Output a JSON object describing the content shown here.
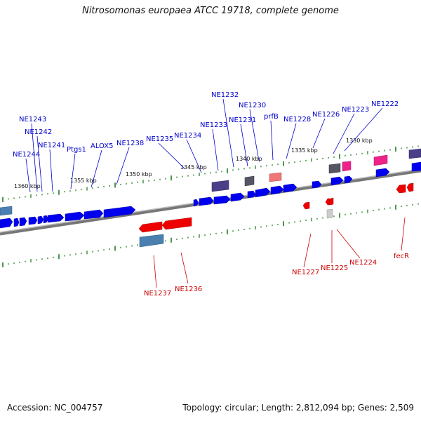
{
  "title": "Nitrosomonas europaea ATCC 19718, complete genome",
  "accession": "Accession: NC_004757",
  "metadata": "Topology: circular; Length: 2,812,094 bp; Genes: 2,509",
  "colors": {
    "plus_label": "#0000cc",
    "minus_label": "#cc0000",
    "cds_plus": "#0000ee",
    "cds_minus": "#ee0000",
    "tick": "#117711"
  },
  "ruler": [
    {
      "label": "1360 kbp"
    },
    {
      "label": "1355 kbp"
    },
    {
      "label": "1350 kbp"
    },
    {
      "label": "1345 kbp"
    },
    {
      "label": "1340 kbp"
    },
    {
      "label": "1335 kbp"
    },
    {
      "label": "1330 kbp"
    }
  ],
  "plus_labels": [
    "NE1244",
    "NE1243",
    "NE1242",
    "NE1241",
    "Ptgs1",
    "ALOX5",
    "NE1238",
    "NE1235",
    "NE1234",
    "NE1233",
    "NE1232",
    "NE1231",
    "NE1230",
    "prfB",
    "NE1228",
    "NE1226",
    "NE1223",
    "NE1222"
  ],
  "minus_labels": [
    "NE1237",
    "NE1236",
    "NE1227",
    "NE1225",
    "NE1224",
    "fecR"
  ]
}
